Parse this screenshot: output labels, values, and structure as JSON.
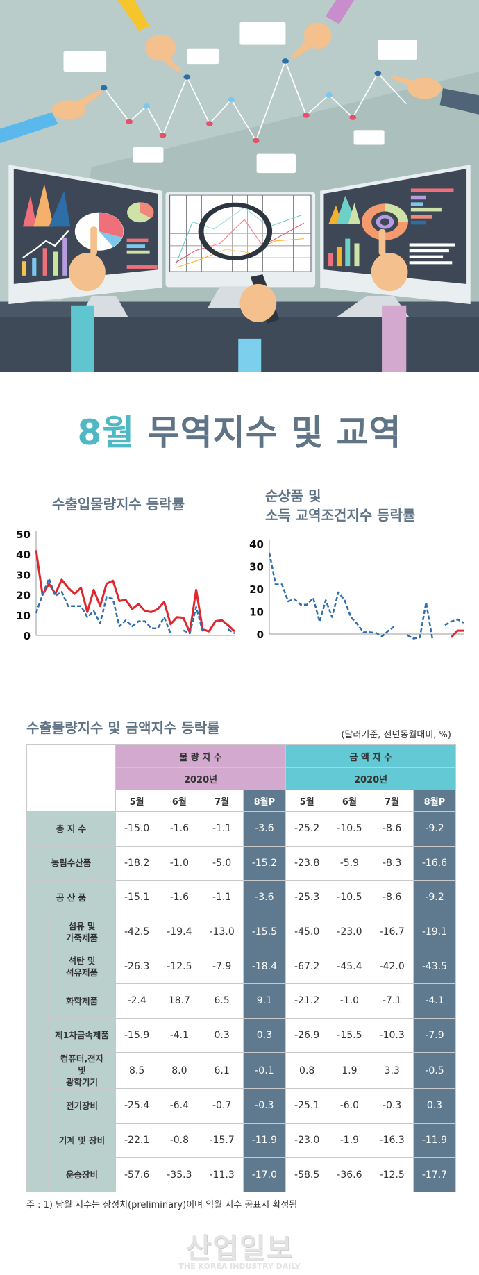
{
  "title": {
    "accent": "8월",
    "rest": " 무역지수 및 교역"
  },
  "chart_data": [
    {
      "type": "line",
      "title": "수출입물량지수 등락률",
      "ylim": [
        0,
        50
      ],
      "yticks": [
        "0",
        "10",
        "20",
        "30",
        "40",
        "50"
      ],
      "series": [
        {
          "style": "solid",
          "color": "#e0262e",
          "values": [
            42,
            20,
            25.5,
            20.5,
            27.5,
            23.5,
            20.5,
            23.5,
            11.5,
            22.5,
            14.5,
            25.5,
            27,
            17,
            17.5,
            13,
            15.5,
            12,
            11.5,
            13,
            16.5,
            5.5,
            9,
            8.7,
            1.5,
            22.5,
            3,
            2,
            7,
            7.5,
            5,
            2
          ]
        },
        {
          "style": "dashed",
          "color": "#2f6fad",
          "values": [
            11,
            20,
            28,
            19.5,
            21.5,
            14.5,
            14.5,
            14.5,
            9,
            12,
            6,
            19,
            18,
            4.5,
            7.5,
            4.5,
            7,
            7,
            3.5,
            3.5,
            9,
            1,
            null,
            2.5,
            1,
            14,
            2,
            null,
            null,
            null,
            3,
            1
          ]
        }
      ]
    },
    {
      "type": "line",
      "title": "순상품 및\n소득 교역조건지수 등락률",
      "ylim": [
        0,
        40
      ],
      "yticks": [
        "0",
        "10",
        "20",
        "30",
        "40"
      ],
      "series": [
        {
          "style": "dashed",
          "color": "#2f6fad",
          "values": [
            36,
            22,
            22,
            14.5,
            15.5,
            13,
            13,
            16,
            5.5,
            15,
            7.5,
            18.5,
            15,
            7.5,
            4.5,
            0.8,
            0.8,
            0.5,
            -1,
            1.5,
            3.5,
            null,
            -0.5,
            -2,
            -1.5,
            14,
            -2,
            null,
            4,
            5.5,
            6.5,
            5
          ]
        },
        {
          "style": "solid",
          "color": "#e0262e",
          "values": [
            null,
            null,
            null,
            null,
            null,
            null,
            null,
            null,
            null,
            null,
            null,
            null,
            null,
            null,
            null,
            null,
            null,
            null,
            null,
            null,
            null,
            null,
            null,
            null,
            null,
            null,
            null,
            null,
            null,
            -1.5,
            1.5,
            1.5
          ]
        }
      ]
    }
  ],
  "table": {
    "title": "수출물량지수 및 금액지수 등락률",
    "unit": "(달러기준, 전년동월대비, %)",
    "group_volume": "물 량 지 수",
    "group_value": "금 액 지 수",
    "year": "2020년",
    "months": [
      "5월",
      "6월",
      "7월",
      "8월P",
      "5월",
      "6월",
      "7월",
      "8월P"
    ],
    "rows": [
      {
        "label": "총 지 수",
        "sub": false,
        "values": [
          "-15.0",
          "-1.6",
          "-1.1",
          "-3.6",
          "-25.2",
          "-10.5",
          "-8.6",
          "-9.2"
        ]
      },
      {
        "label": "농림수산품",
        "sub": false,
        "values": [
          "-18.2",
          "-1.0",
          "-5.0",
          "-15.2",
          "-23.8",
          "-5.9",
          "-8.3",
          "-16.6"
        ]
      },
      {
        "label": "공 산 품",
        "sub": false,
        "values": [
          "-15.1",
          "-1.6",
          "-1.1",
          "-3.6",
          "-25.3",
          "-10.5",
          "-8.6",
          "-9.2"
        ]
      },
      {
        "label": "섬유 및\n가죽제품",
        "sub": true,
        "values": [
          "-42.5",
          "-19.4",
          "-13.0",
          "-15.5",
          "-45.0",
          "-23.0",
          "-16.7",
          "-19.1"
        ]
      },
      {
        "label": "석탄 및\n석유제품",
        "sub": true,
        "values": [
          "-26.3",
          "-12.5",
          "-7.9",
          "-18.4",
          "-67.2",
          "-45.4",
          "-42.0",
          "-43.5"
        ]
      },
      {
        "label": "화학제품",
        "sub": true,
        "values": [
          "-2.4",
          "18.7",
          "6.5",
          "9.1",
          "-21.2",
          "-1.0",
          "-7.1",
          "-4.1"
        ]
      },
      {
        "label": "제1차금속제품",
        "sub": true,
        "values": [
          "-15.9",
          "-4.1",
          "0.3",
          "0.3",
          "-26.9",
          "-15.5",
          "-10.3",
          "-7.9"
        ]
      },
      {
        "label": "컴퓨터,전자\n및\n광학기기",
        "sub": true,
        "values": [
          "8.5",
          "8.0",
          "6.1",
          "-0.1",
          "0.8",
          "1.9",
          "3.3",
          "-0.5"
        ]
      },
      {
        "label": "전기장비",
        "sub": true,
        "values": [
          "-25.4",
          "-6.4",
          "-0.7",
          "-0.3",
          "-25.1",
          "-6.0",
          "-0.3",
          "0.3"
        ]
      },
      {
        "label": "기계 및 장비",
        "sub": true,
        "values": [
          "-22.1",
          "-0.8",
          "-15.7",
          "-11.9",
          "-23.0",
          "-1.9",
          "-16.3",
          "-11.9"
        ]
      },
      {
        "label": "운송장비",
        "sub": true,
        "values": [
          "-57.6",
          "-35.3",
          "-11.3",
          "-17.0",
          "-58.5",
          "-36.6",
          "-12.5",
          "-17.7"
        ]
      }
    ]
  },
  "footnote": "주 : 1) 당월 지수는 잠정치(preliminary)이며 익월 지수 공표시 확정됨",
  "logo": {
    "korean": "산업일보",
    "english": "THE KOREA INDUSTRY DAILY"
  }
}
